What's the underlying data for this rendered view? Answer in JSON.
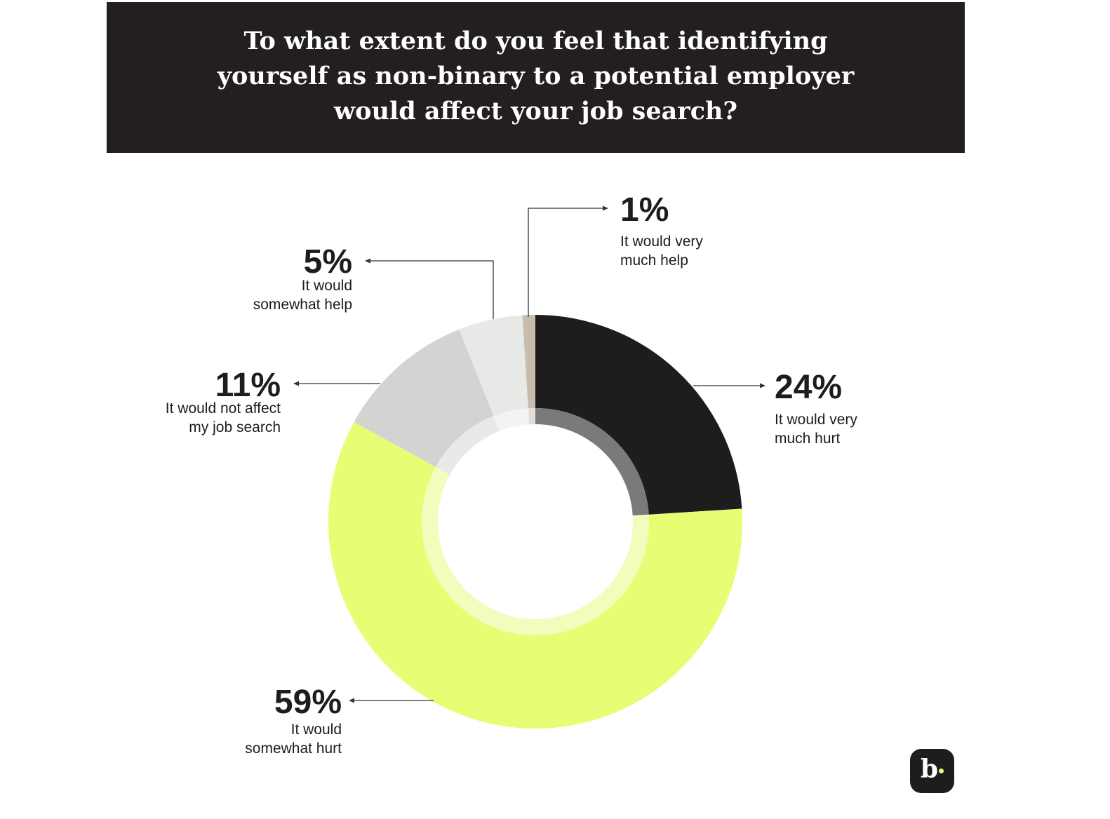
{
  "title": "To what extent do you feel that identifying yourself as non-binary to a potential employer would affect your job search?",
  "chart_data": {
    "type": "pie",
    "donut": true,
    "slices": [
      {
        "value": 24,
        "percent_label": "24%",
        "label_lines": [
          "It would very",
          "much hurt"
        ],
        "color": "#1e1c1d",
        "inner_ring_color": "#7b7a7b"
      },
      {
        "value": 59,
        "percent_label": "59%",
        "label_lines": [
          "It would",
          "somewhat hurt"
        ],
        "color": "#e8fc74",
        "inner_ring_color": "#f1fdbc"
      },
      {
        "value": 11,
        "percent_label": "11%",
        "label_lines": [
          "It would not affect",
          "my job search"
        ],
        "color": "#d3d4d1",
        "inner_ring_color": "#e9e9e7"
      },
      {
        "value": 5,
        "percent_label": "5%",
        "label_lines": [
          "It would",
          "somewhat help"
        ],
        "color": "#e7e9e6",
        "inner_ring_color": "#f3f4f2"
      },
      {
        "value": 1,
        "percent_label": "1%",
        "label_lines": [
          "It would very",
          "much help"
        ],
        "color": "#c8bcaf",
        "inner_ring_color": "#e3ddd7"
      }
    ]
  },
  "logo": {
    "letter": "b",
    "accent_color": "#e8fb6f"
  }
}
